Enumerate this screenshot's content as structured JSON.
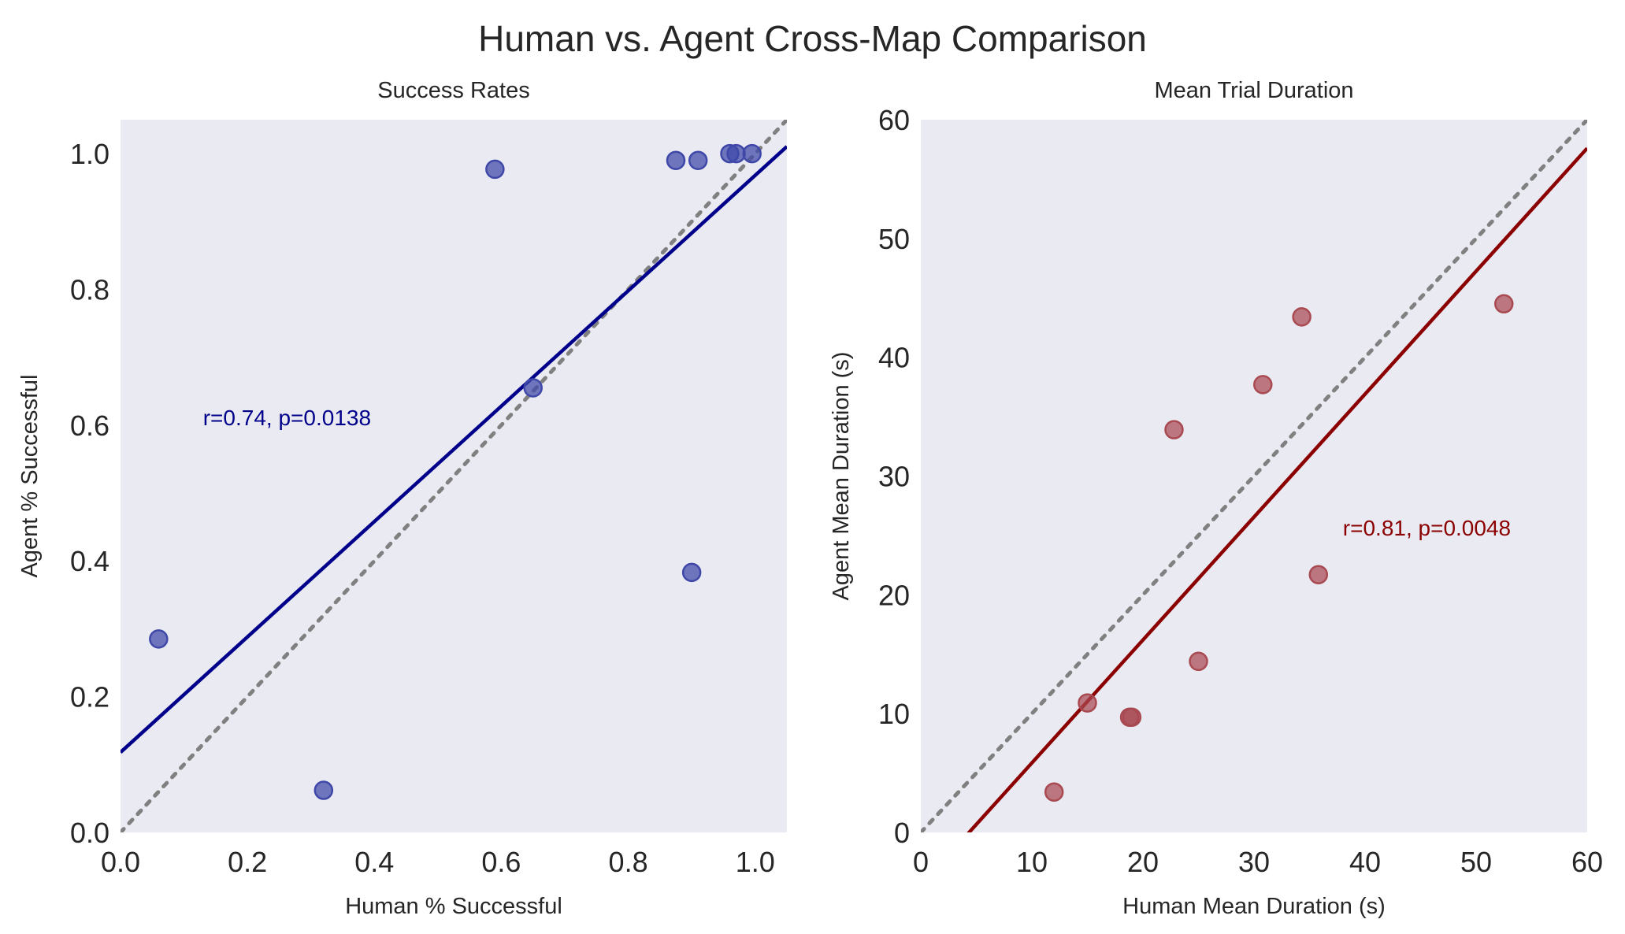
{
  "figure_title": "Human vs. Agent Cross-Map Comparison",
  "chart_data": [
    {
      "type": "scatter",
      "title": "Success Rates",
      "xlabel": "Human % Successful",
      "ylabel": "Agent % Successful",
      "xlim": [
        0,
        1.05
      ],
      "ylim": [
        0,
        1.05
      ],
      "xticks": [
        0.0,
        0.2,
        0.4,
        0.6,
        0.8,
        1.0
      ],
      "yticks": [
        0.0,
        0.2,
        0.4,
        0.6,
        0.8,
        1.0
      ],
      "xtick_labels": [
        "0.0",
        "0.2",
        "0.4",
        "0.6",
        "0.8",
        "1.0"
      ],
      "ytick_labels": [
        "0.0",
        "0.2",
        "0.4",
        "0.6",
        "0.8",
        "1.0"
      ],
      "points": [
        {
          "x": 0.06,
          "y": 0.285
        },
        {
          "x": 0.32,
          "y": 0.062
        },
        {
          "x": 0.59,
          "y": 0.977
        },
        {
          "x": 0.65,
          "y": 0.655
        },
        {
          "x": 0.875,
          "y": 0.99
        },
        {
          "x": 0.9,
          "y": 0.383
        },
        {
          "x": 0.91,
          "y": 0.99
        },
        {
          "x": 0.96,
          "y": 1.0
        },
        {
          "x": 0.97,
          "y": 1.0
        },
        {
          "x": 0.995,
          "y": 1.0
        }
      ],
      "fit_line": {
        "intercept": 0.118,
        "slope": 0.85
      },
      "identity_line": true,
      "annotation": {
        "text": "r=0.74, p=0.0138",
        "x": 0.13,
        "y": 0.6
      },
      "color": "#00008b",
      "point_color": "#3f48a8"
    },
    {
      "type": "scatter",
      "title": "Mean Trial Duration",
      "xlabel": "Human Mean Duration (s)",
      "ylabel": "Agent Mean Duration (s)",
      "xlim": [
        0,
        60
      ],
      "ylim": [
        0,
        60
      ],
      "xticks": [
        0,
        10,
        20,
        30,
        40,
        50,
        60
      ],
      "yticks": [
        0,
        10,
        20,
        30,
        40,
        50,
        60
      ],
      "xtick_labels": [
        "0",
        "10",
        "20",
        "30",
        "40",
        "50",
        "60"
      ],
      "ytick_labels": [
        "0",
        "10",
        "20",
        "30",
        "40",
        "50",
        "60"
      ],
      "points": [
        {
          "x": 12.0,
          "y": 3.4
        },
        {
          "x": 15.0,
          "y": 10.9
        },
        {
          "x": 18.8,
          "y": 9.7
        },
        {
          "x": 19.0,
          "y": 9.7
        },
        {
          "x": 22.8,
          "y": 33.9
        },
        {
          "x": 25.0,
          "y": 14.4
        },
        {
          "x": 30.8,
          "y": 37.7
        },
        {
          "x": 34.3,
          "y": 43.4
        },
        {
          "x": 35.8,
          "y": 21.7
        },
        {
          "x": 52.5,
          "y": 44.5
        }
      ],
      "fit_line": {
        "intercept": -4.5,
        "slope": 1.035
      },
      "identity_line": true,
      "annotation": {
        "text": "r=0.81, p=0.0048",
        "x": 38.0,
        "y": 25.0
      },
      "color": "#8b0000",
      "point_color": "#a94a52"
    }
  ]
}
